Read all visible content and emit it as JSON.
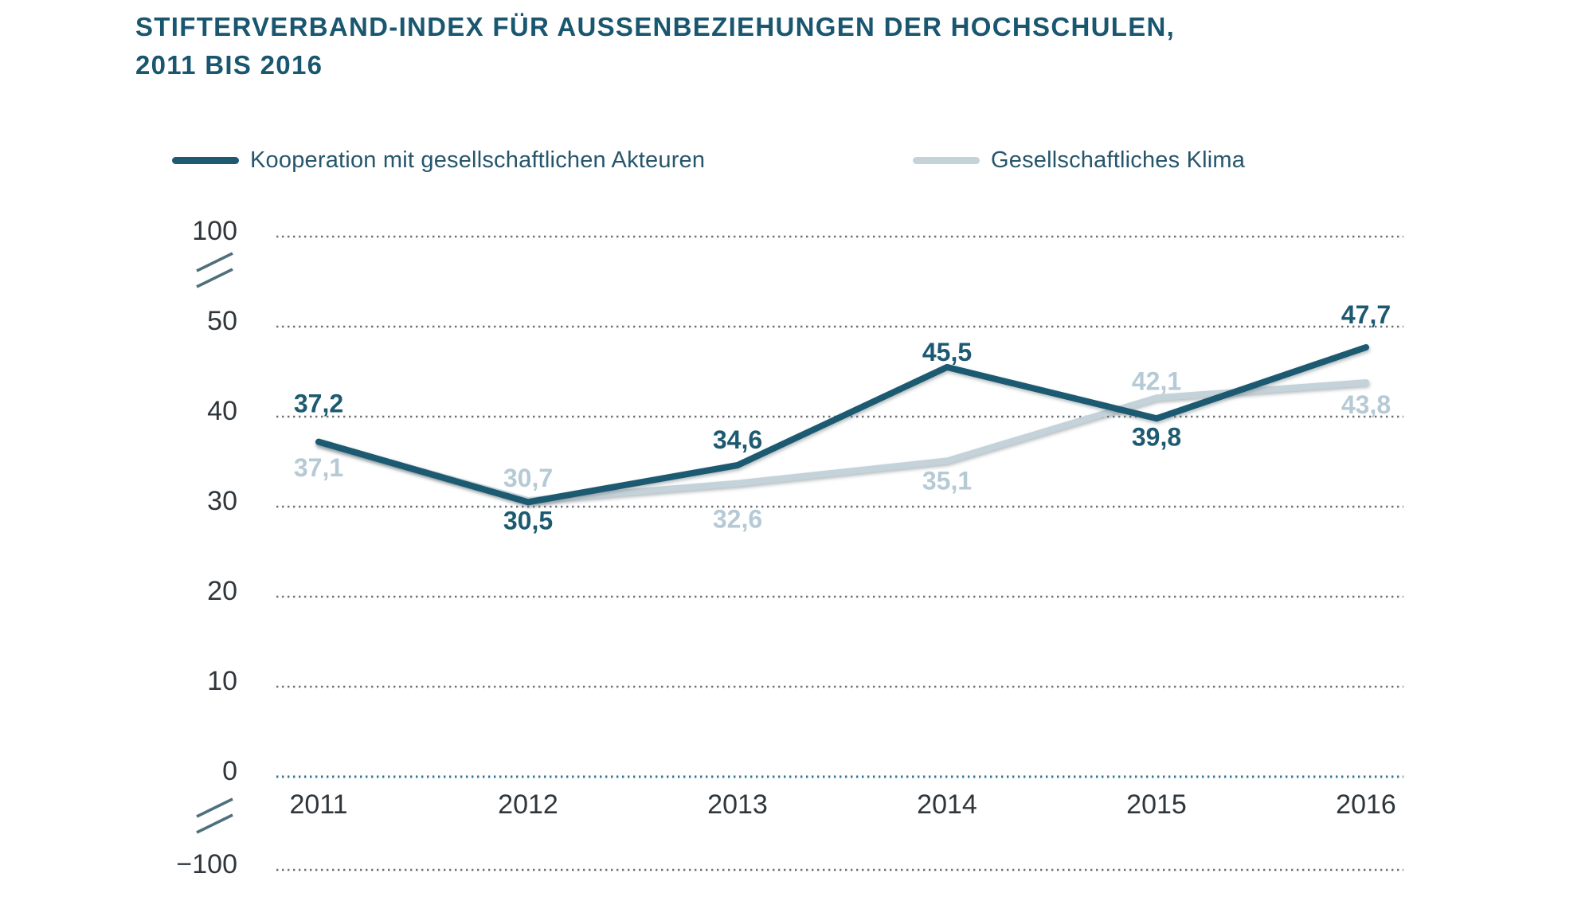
{
  "title": {
    "line1": "STIFTERVERBAND-INDEX FÜR AUSSENBEZIEHUNGEN DER HOCHSCHULEN,",
    "line2": "2011 BIS 2016"
  },
  "legend": [
    {
      "label": "Kooperation mit gesellschaftlichen Akteuren",
      "color": "#1d5a72"
    },
    {
      "label": "Gesellschaftliches Klima",
      "color": "#c4d2d9"
    }
  ],
  "chart_data": {
    "type": "line",
    "title": "Stifterverband-Index für Aussenbeziehungen der Hochschulen, 2011 bis 2016",
    "categories": [
      "2011",
      "2012",
      "2013",
      "2014",
      "2015",
      "2016"
    ],
    "series": [
      {
        "name": "Kooperation mit gesellschaftlichen Akteuren",
        "color": "#1d5a72",
        "label_color": "#1d5a72",
        "values": [
          37.2,
          30.5,
          34.6,
          45.5,
          39.8,
          47.7
        ],
        "labels": [
          "37,2",
          "30,5",
          "34,6",
          "45,5",
          "39,8",
          "47,7"
        ],
        "label_positions": [
          "above",
          "below",
          "above",
          "above",
          "below",
          "above"
        ]
      },
      {
        "name": "Gesellschaftliches Klima",
        "color": "#c4d2d9",
        "label_color": "#b6cad5",
        "values": [
          37.1,
          30.7,
          32.6,
          35.1,
          42.1,
          43.8
        ],
        "labels": [
          "37,1",
          "30,7",
          "32,6",
          "35,1",
          "42,1",
          "43,8"
        ],
        "label_positions": [
          "below",
          "above",
          "below",
          "below",
          "above",
          "below"
        ]
      }
    ],
    "y_ticks": [
      "100",
      "50",
      "40",
      "30",
      "20",
      "10",
      "0",
      "−100"
    ],
    "y_axis": {
      "broken": true,
      "breaks": [
        "between 50 and 100",
        "between 0 and −100"
      ],
      "plot_scale": "linear 0–50"
    },
    "grid": "dotted horizontal",
    "zero_line_accent": true,
    "legend_position": "top",
    "xlabel": "",
    "ylabel": "",
    "colors": {
      "grid_dots": "#6d7073",
      "zero_line_dots": "#327394",
      "axis_break_mark": "#4f6e7e",
      "tick_text": "#2f363b",
      "title_text": "#19566f"
    }
  }
}
